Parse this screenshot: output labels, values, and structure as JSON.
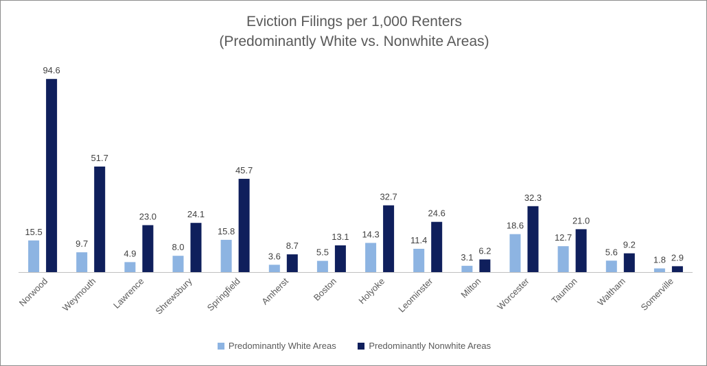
{
  "colors": {
    "white_areas": "#8db4e2",
    "nonwhite_areas": "#0f1f5c",
    "axis": "#bfbfbf",
    "text": "#595959"
  },
  "chart_data": {
    "type": "bar",
    "title": [
      "Eviction Filings per 1,000 Renters",
      "(Predominantly White vs. Nonwhite Areas)"
    ],
    "xlabel": "",
    "ylabel": "",
    "ylim": [
      0,
      100
    ],
    "grid": false,
    "legend_position": "bottom",
    "categories": [
      "Norwood",
      "Weymouth",
      "Lawrence",
      "Shrewsbury",
      "Springfield",
      "Amherst",
      "Boston",
      "Holyoke",
      "Leominster",
      "Milton",
      "Worcester",
      "Taunton",
      "Waltham",
      "Somerville"
    ],
    "series": [
      {
        "name": "Predominantly White Areas",
        "values": [
          15.5,
          9.7,
          4.9,
          8.0,
          15.8,
          3.6,
          5.5,
          14.3,
          11.4,
          3.1,
          18.6,
          12.7,
          5.6,
          1.8
        ],
        "labels": [
          "15.5",
          "9.7",
          "4.9",
          "8.0",
          "15.8",
          "3.6",
          "5.5",
          "14.3",
          "11.4",
          "3.1",
          "18.6",
          "12.7",
          "5.6",
          "1.8"
        ]
      },
      {
        "name": "Predominantly Nonwhite Areas",
        "values": [
          94.6,
          51.7,
          23.0,
          24.1,
          45.7,
          8.7,
          13.1,
          32.7,
          24.6,
          6.2,
          32.3,
          21.0,
          9.2,
          2.9
        ],
        "labels": [
          "94.6",
          "51.7",
          "23.0",
          "24.1",
          "45.7",
          "8.7",
          "13.1",
          "32.7",
          "24.6",
          "6.2",
          "32.3",
          "21.0",
          "9.2",
          "2.9"
        ]
      }
    ]
  }
}
